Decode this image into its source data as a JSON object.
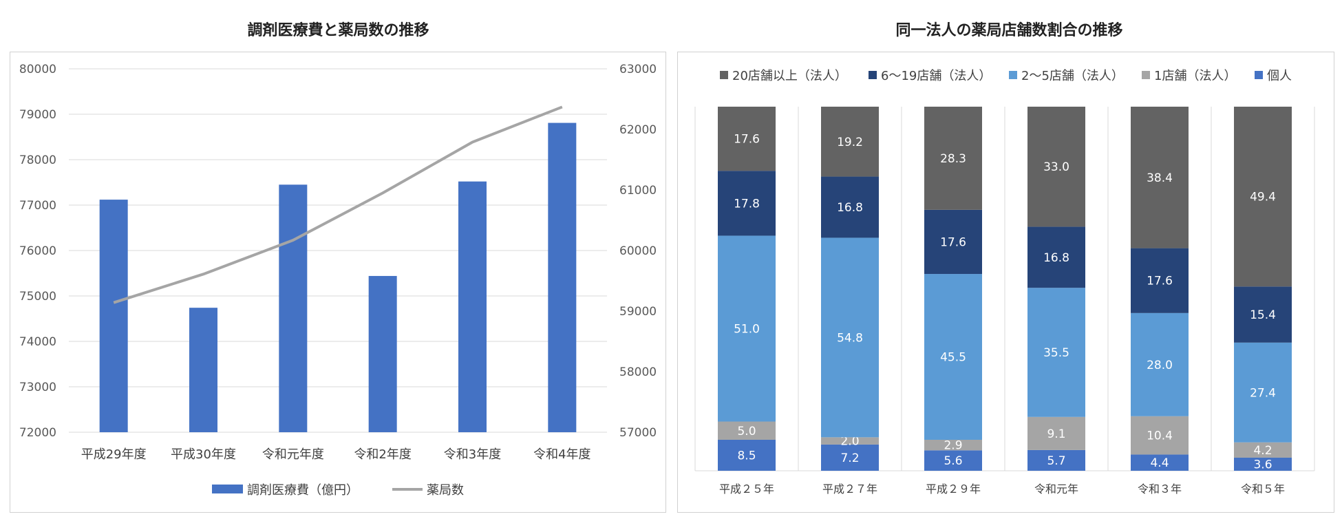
{
  "chart_data": [
    {
      "type": "bar+line",
      "title": "調剤医療費と薬局数の推移",
      "categories": [
        "平成29年度",
        "平成30年度",
        "令和元年度",
        "令和2年度",
        "令和3年度",
        "令和4年度"
      ],
      "series": [
        {
          "name": "調剤医療費（億円）",
          "type": "bar",
          "axis": "left",
          "color": "#4472C4",
          "values": [
            77120,
            74740,
            77450,
            75440,
            77520,
            78810
          ]
        },
        {
          "name": "薬局数",
          "type": "line",
          "axis": "right",
          "color": "#A5A5A5",
          "values": [
            59140,
            59610,
            60170,
            60950,
            61790,
            62370
          ]
        }
      ],
      "y_left": {
        "min": 72000,
        "max": 80000,
        "ticks": [
          "72000",
          "73000",
          "74000",
          "75000",
          "76000",
          "77000",
          "78000",
          "79000",
          "80000"
        ]
      },
      "y_right": {
        "min": 57000,
        "max": 63000,
        "ticks": [
          "57000",
          "58000",
          "59000",
          "60000",
          "61000",
          "62000",
          "63000"
        ]
      },
      "legend": [
        "調剤医療費（億円）",
        "薬局数"
      ],
      "legend_position": "bottom",
      "grid": true
    },
    {
      "type": "stacked-bar",
      "title": "同一法人の薬局店舗数割合の推移",
      "categories": [
        "平成２５年",
        "平成２７年",
        "平成２９年",
        "令和元年",
        "令和３年",
        "令和５年"
      ],
      "series": [
        {
          "name": "個人",
          "color": "#4472C4",
          "values": [
            8.5,
            7.2,
            5.6,
            5.7,
            4.4,
            3.6
          ],
          "labels": [
            "8.5",
            "7.2",
            "5.6",
            "5.7",
            "4.4",
            "3.6"
          ]
        },
        {
          "name": "1店舗（法人）",
          "color": "#A5A5A5",
          "values": [
            5.0,
            2.0,
            2.9,
            9.1,
            10.4,
            4.2
          ],
          "labels": [
            "5.0",
            "2.0",
            "2.9",
            "9.1",
            "10.4",
            "4.2"
          ]
        },
        {
          "name": "2～5店舗（法人）",
          "color": "#5B9BD5",
          "values": [
            51.0,
            54.8,
            45.5,
            35.5,
            28.0,
            27.4
          ],
          "labels": [
            "51.0",
            "54.8",
            "45.5",
            "35.5",
            "28.0",
            "27.4"
          ]
        },
        {
          "name": "6～19店舗（法人）",
          "color": "#264478",
          "values": [
            17.8,
            16.8,
            17.6,
            16.8,
            17.6,
            15.4
          ],
          "labels": [
            "17.8",
            "16.8",
            "17.6",
            "16.8",
            "17.6",
            "15.4"
          ]
        },
        {
          "name": "20店舗以上（法人）",
          "color": "#636363",
          "values": [
            17.6,
            19.2,
            28.3,
            33.0,
            38.4,
            49.4
          ],
          "labels": [
            "17.6",
            "19.2",
            "28.3",
            "33.0",
            "38.4",
            "49.4"
          ]
        }
      ],
      "legend": [
        "20店舗以上（法人）",
        "6～19店舗（法人）",
        "2～5店舗（法人）",
        "1店舗（法人）",
        "個人"
      ],
      "legend_position": "top",
      "grid": true
    }
  ]
}
